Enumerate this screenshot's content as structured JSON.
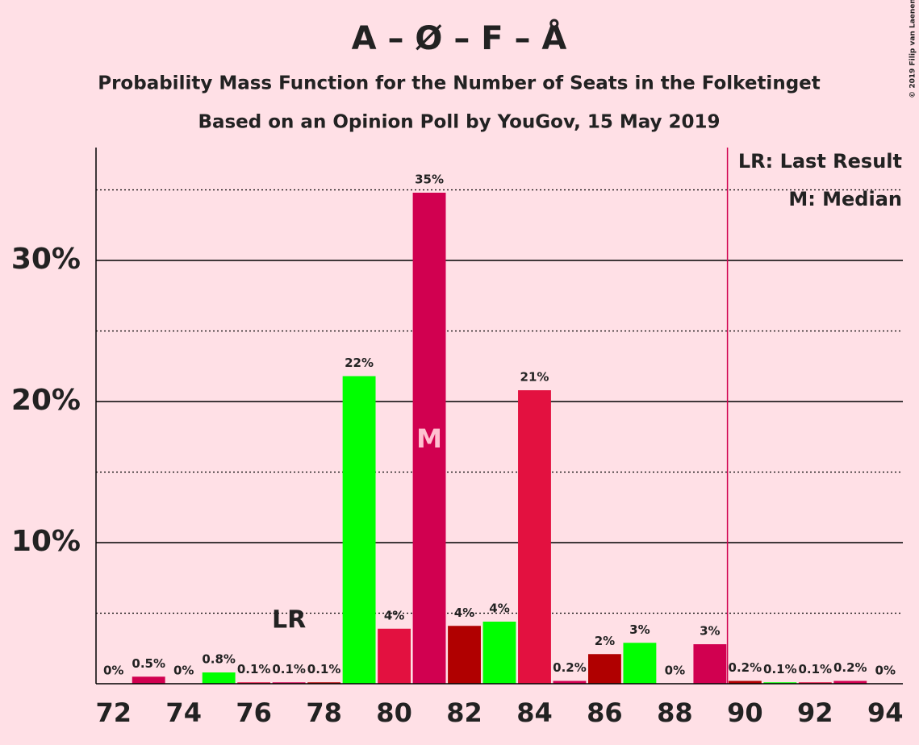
{
  "chart_data": {
    "type": "bar",
    "title": "A – Ø – F – Å",
    "subtitle": "Probability Mass Function for the Number of Seats in the Folketinget",
    "subtitle2": "Based on an Opinion Poll by YouGov, 15 May 2019",
    "copyright": "© 2019 Filip van Laenen",
    "x": [
      72,
      73,
      74,
      75,
      76,
      77,
      78,
      79,
      80,
      81,
      82,
      83,
      84,
      85,
      86,
      87,
      88,
      89,
      90,
      91,
      92,
      93,
      94
    ],
    "values": [
      0,
      0.5,
      0,
      0.8,
      0.1,
      0.1,
      0.1,
      21.8,
      3.9,
      34.8,
      4.1,
      4.4,
      20.8,
      0.2,
      2.1,
      2.9,
      0,
      2.8,
      0.2,
      0.1,
      0.1,
      0.2,
      0
    ],
    "value_labels": [
      "0%",
      "0.5%",
      "0%",
      "0.8%",
      "0.1%",
      "0.1%",
      "0.1%",
      "22%",
      "4%",
      "35%",
      "4%",
      "4%",
      "21%",
      "0.2%",
      "2%",
      "3%",
      "0%",
      "3%",
      "0.2%",
      "0.1%",
      "0.1%",
      "0.2%",
      "0%"
    ],
    "colors": [
      "#d10050",
      "#d10050",
      "#00ff00",
      "#00ff00",
      "#e31140",
      "#d10050",
      "#b00000",
      "#00ff00",
      "#e31140",
      "#d10050",
      "#b00000",
      "#00ff00",
      "#e31140",
      "#d10050",
      "#b00000",
      "#00ff00",
      "#e31140",
      "#d10050",
      "#b00000",
      "#00ff00",
      "#e31140",
      "#d10050",
      "#b00000"
    ],
    "xlim": [
      71.5,
      94.5
    ],
    "xticks": [
      72,
      74,
      76,
      78,
      80,
      82,
      84,
      86,
      88,
      90,
      92,
      94
    ],
    "ylim": [
      0,
      38
    ],
    "yticks": [
      {
        "value": 10,
        "label": "10%"
      },
      {
        "value": 20,
        "label": "20%"
      },
      {
        "value": 30,
        "label": "30%"
      }
    ],
    "minor_yticks": [
      5,
      15,
      25,
      35
    ],
    "grid": true,
    "majority_line": 89.5,
    "last_result": 77,
    "last_result_label": "LR",
    "median": 81,
    "median_label": "M",
    "legend": [
      "LR: Last Result",
      "M: Median"
    ]
  }
}
